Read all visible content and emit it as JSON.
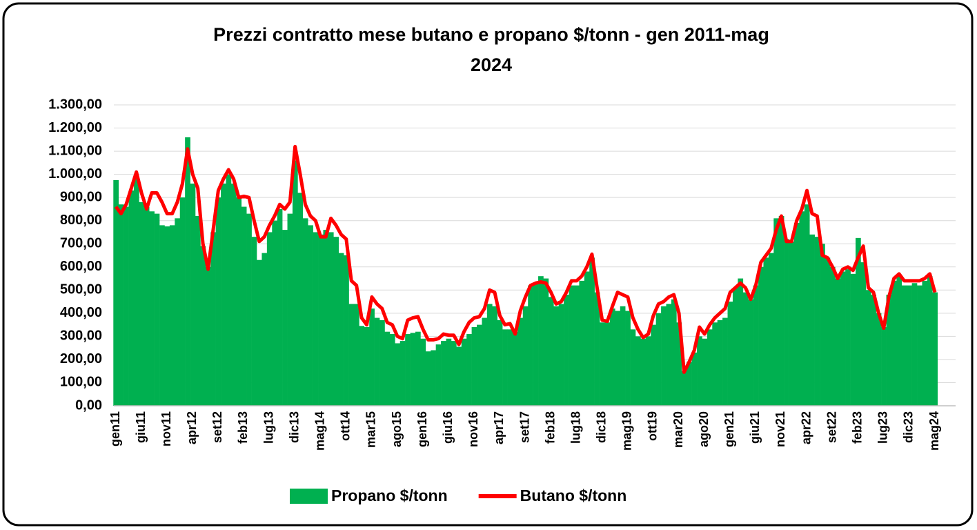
{
  "chart_data": {
    "type": "bar_line",
    "title": "Prezzi contratto mese butano e propano $/tonn - gen 2011-mag 2024",
    "categories": [
      "gen11",
      null,
      null,
      null,
      null,
      "giu11",
      null,
      null,
      null,
      null,
      "nov11",
      null,
      null,
      null,
      null,
      "apr12",
      null,
      null,
      null,
      null,
      "set12",
      null,
      null,
      null,
      null,
      "feb13",
      null,
      null,
      null,
      null,
      "lug13",
      null,
      null,
      null,
      null,
      "dic13",
      null,
      null,
      null,
      null,
      "mag14",
      null,
      null,
      null,
      null,
      "ott14",
      null,
      null,
      null,
      null,
      "mar15",
      null,
      null,
      null,
      null,
      "ago15",
      null,
      null,
      null,
      null,
      "gen16",
      null,
      null,
      null,
      null,
      "giu16",
      null,
      null,
      null,
      null,
      "nov16",
      null,
      null,
      null,
      null,
      "apr17",
      null,
      null,
      null,
      null,
      "set17",
      null,
      null,
      null,
      null,
      "feb18",
      null,
      null,
      null,
      null,
      "lug18",
      null,
      null,
      null,
      null,
      "dic18",
      null,
      null,
      null,
      null,
      "mag19",
      null,
      null,
      null,
      null,
      "ott19",
      null,
      null,
      null,
      null,
      "mar20",
      null,
      null,
      null,
      null,
      "ago20",
      null,
      null,
      null,
      null,
      "gen21",
      null,
      null,
      null,
      null,
      "giu21",
      null,
      null,
      null,
      null,
      "nov21",
      null,
      null,
      null,
      null,
      "apr22",
      null,
      null,
      null,
      null,
      "set22",
      null,
      null,
      null,
      null,
      "feb23",
      null,
      null,
      null,
      null,
      "lug23",
      null,
      null,
      null,
      null,
      "dic23",
      null,
      null,
      null,
      null,
      "mag24"
    ],
    "series": [
      {
        "name": "Propano $/tonn",
        "kind": "bar",
        "color": "#00b050",
        "values": [
          975,
          870,
          860,
          930,
          990,
          880,
          860,
          840,
          830,
          780,
          775,
          780,
          810,
          900,
          1160,
          960,
          820,
          690,
          600,
          750,
          900,
          960,
          1000,
          960,
          900,
          860,
          830,
          730,
          630,
          660,
          750,
          800,
          850,
          760,
          830,
          1060,
          920,
          810,
          780,
          750,
          740,
          760,
          750,
          730,
          660,
          650,
          440,
          440,
          345,
          340,
          420,
          380,
          370,
          320,
          310,
          270,
          280,
          310,
          315,
          320,
          290,
          235,
          240,
          265,
          280,
          290,
          280,
          255,
          290,
          310,
          340,
          350,
          380,
          440,
          430,
          370,
          330,
          330,
          320,
          380,
          430,
          520,
          530,
          560,
          550,
          470,
          430,
          440,
          480,
          520,
          520,
          540,
          580,
          640,
          490,
          360,
          360,
          420,
          410,
          430,
          410,
          330,
          300,
          290,
          300,
          350,
          400,
          430,
          440,
          460,
          360,
          150,
          190,
          230,
          300,
          290,
          330,
          360,
          370,
          380,
          450,
          510,
          550,
          490,
          460,
          520,
          600,
          640,
          660,
          810,
          820,
          720,
          710,
          790,
          840,
          870,
          740,
          730,
          700,
          640,
          600,
          550,
          580,
          590,
          570,
          725,
          620,
          500,
          480,
          400,
          340,
          480,
          540,
          560,
          520,
          520,
          530,
          520,
          540,
          560,
          490
        ]
      },
      {
        "name": "Butano $/tonn",
        "kind": "line",
        "color": "#ff0000",
        "values": [
          860,
          830,
          870,
          940,
          1010,
          920,
          850,
          920,
          920,
          880,
          830,
          830,
          880,
          960,
          1110,
          1000,
          940,
          700,
          590,
          760,
          930,
          980,
          1020,
          980,
          900,
          905,
          900,
          800,
          710,
          730,
          780,
          820,
          870,
          850,
          880,
          1120,
          1000,
          870,
          820,
          800,
          730,
          730,
          810,
          780,
          740,
          720,
          540,
          520,
          380,
          350,
          470,
          440,
          420,
          360,
          350,
          300,
          290,
          370,
          380,
          385,
          330,
          285,
          285,
          290,
          310,
          305,
          305,
          265,
          320,
          360,
          380,
          385,
          420,
          500,
          490,
          390,
          350,
          355,
          310,
          410,
          470,
          520,
          530,
          535,
          530,
          490,
          440,
          450,
          490,
          540,
          540,
          560,
          600,
          655,
          510,
          370,
          365,
          430,
          490,
          480,
          470,
          380,
          330,
          295,
          310,
          390,
          440,
          450,
          470,
          480,
          400,
          145,
          190,
          240,
          340,
          310,
          350,
          380,
          400,
          420,
          490,
          510,
          530,
          510,
          460,
          520,
          620,
          650,
          680,
          760,
          820,
          710,
          710,
          800,
          850,
          930,
          830,
          820,
          650,
          640,
          600,
          550,
          590,
          600,
          585,
          640,
          690,
          510,
          490,
          400,
          335,
          470,
          550,
          570,
          540,
          540,
          540,
          540,
          550,
          570,
          490
        ]
      }
    ],
    "ylim": [
      0,
      1300
    ],
    "yticks": [
      {
        "value": 0,
        "label": "0,00"
      },
      {
        "value": 100,
        "label": "100,00"
      },
      {
        "value": 200,
        "label": "200,00"
      },
      {
        "value": 300,
        "label": "300,00"
      },
      {
        "value": 400,
        "label": "400,00"
      },
      {
        "value": 500,
        "label": "500,00"
      },
      {
        "value": 600,
        "label": "600,00"
      },
      {
        "value": 700,
        "label": "700,00"
      },
      {
        "value": 800,
        "label": "800,00"
      },
      {
        "value": 900,
        "label": "900,00"
      },
      {
        "value": 1000,
        "label": "1.000,00"
      },
      {
        "value": 1100,
        "label": "1.100,00"
      },
      {
        "value": 1200,
        "label": "1.200,00"
      },
      {
        "value": 1300,
        "label": "1.300,00"
      }
    ],
    "grid": true,
    "legend": "bottom"
  }
}
